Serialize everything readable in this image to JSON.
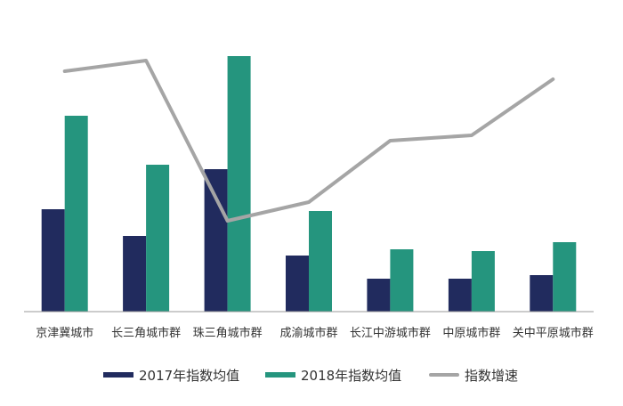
{
  "colors": {
    "series_2017": "#212b5e",
    "series_2018": "#25957e",
    "growth": "#a5a5a5",
    "axis": "#999999"
  },
  "legend": {
    "series_2017": "2017年指数均值",
    "series_2018": "2018年指数均值",
    "growth": "指数增速"
  },
  "chart_data": {
    "type": "bar",
    "categories": [
      "京津冀城市",
      "长三角城市群",
      "珠三角城市群",
      "成渝城市群",
      "长江中游城市群",
      "中原城市群",
      "关中平原城市群"
    ],
    "series": [
      {
        "name": "2017年指数均值",
        "values": [
          115,
          85,
          160,
          63,
          37,
          37,
          41
        ]
      },
      {
        "name": "2018年指数均值",
        "values": [
          220,
          165,
          287,
          113,
          70,
          68,
          78
        ]
      }
    ],
    "line_series": {
      "name": "指数增速",
      "values": [
        90,
        94,
        34,
        41,
        64,
        66,
        87
      ]
    },
    "ylim": [
      0,
      300
    ],
    "line_ylim": [
      0,
      100
    ],
    "grid": false,
    "legend_position": "bottom"
  }
}
